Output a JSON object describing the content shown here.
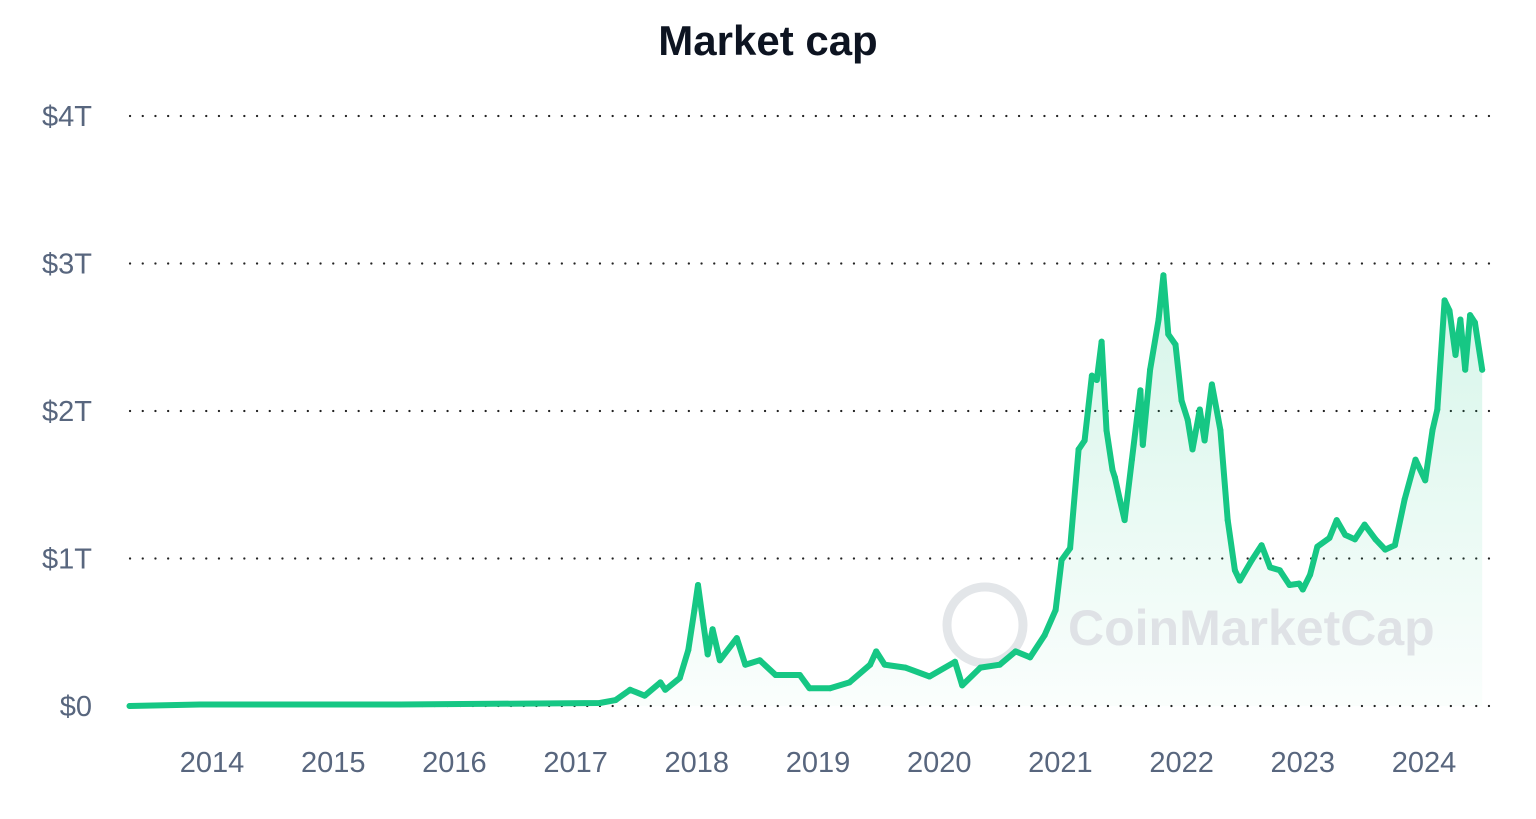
{
  "chart_data": {
    "type": "area",
    "title": "Market cap",
    "xlabel": "",
    "ylabel": "",
    "x_unit": "year",
    "xlim": [
      2013.32,
      2024.48
    ],
    "ylim": [
      0,
      4
    ],
    "y_unit": "trillion USD",
    "x_ticks": [
      "2014",
      "2015",
      "2016",
      "2017",
      "2018",
      "2019",
      "2020",
      "2021",
      "2022",
      "2023",
      "2024"
    ],
    "y_ticks": [
      "$0",
      "$1T",
      "$2T",
      "$3T",
      "$4T"
    ],
    "grid": "horizontal dotted",
    "legend": "none",
    "watermark": "CoinMarketCap",
    "colors": {
      "line": "#16c784",
      "fill": "#16c784",
      "grid": "#222222",
      "text": "#58667e",
      "title": "#0d1421"
    },
    "x": [
      2013.32,
      2013.9,
      2015.55,
      2017.2,
      2017.33,
      2017.45,
      2017.57,
      2017.7,
      2017.74,
      2017.86,
      2017.93,
      2017.98,
      2018.01,
      2018.05,
      2018.09,
      2018.13,
      2018.19,
      2018.33,
      2018.4,
      2018.52,
      2018.65,
      2018.85,
      2018.93,
      2019.1,
      2019.26,
      2019.43,
      2019.48,
      2019.55,
      2019.72,
      2019.92,
      2020.13,
      2020.19,
      2020.34,
      2020.5,
      2020.63,
      2020.75,
      2020.87,
      2020.96,
      2021.01,
      2021.08,
      2021.15,
      2021.2,
      2021.26,
      2021.3,
      2021.34,
      2021.38,
      2021.43,
      2021.45,
      2021.49,
      2021.53,
      2021.59,
      2021.66,
      2021.68,
      2021.74,
      2021.81,
      2021.85,
      2021.89,
      2021.95,
      2022.0,
      2022.05,
      2022.09,
      2022.15,
      2022.19,
      2022.25,
      2022.32,
      2022.38,
      2022.44,
      2022.48,
      2022.58,
      2022.66,
      2022.73,
      2022.81,
      2022.89,
      2022.97,
      2023.0,
      2023.06,
      2023.12,
      2023.22,
      2023.28,
      2023.35,
      2023.43,
      2023.51,
      2023.6,
      2023.68,
      2023.76,
      2023.84,
      2023.93,
      2024.01,
      2024.07,
      2024.11,
      2024.17,
      2024.21,
      2024.26,
      2024.3,
      2024.34,
      2024.38,
      2024.42,
      2024.48
    ],
    "values": [
      0.0,
      0.01,
      0.01,
      0.02,
      0.04,
      0.11,
      0.07,
      0.16,
      0.11,
      0.19,
      0.38,
      0.65,
      0.82,
      0.58,
      0.35,
      0.52,
      0.31,
      0.46,
      0.28,
      0.31,
      0.21,
      0.21,
      0.12,
      0.12,
      0.16,
      0.28,
      0.37,
      0.28,
      0.26,
      0.2,
      0.3,
      0.14,
      0.26,
      0.28,
      0.37,
      0.33,
      0.48,
      0.65,
      0.99,
      1.07,
      1.74,
      1.8,
      2.24,
      2.21,
      2.47,
      1.87,
      1.6,
      1.55,
      1.4,
      1.26,
      1.67,
      2.14,
      1.77,
      2.28,
      2.62,
      2.92,
      2.52,
      2.45,
      2.07,
      1.94,
      1.74,
      2.01,
      1.8,
      2.18,
      1.87,
      1.26,
      0.92,
      0.85,
      0.99,
      1.09,
      0.94,
      0.92,
      0.82,
      0.83,
      0.79,
      0.89,
      1.08,
      1.14,
      1.26,
      1.16,
      1.13,
      1.23,
      1.13,
      1.06,
      1.09,
      1.4,
      1.67,
      1.53,
      1.87,
      2.01,
      2.75,
      2.68,
      2.38,
      2.62,
      2.28,
      2.65,
      2.6,
      2.28
    ]
  }
}
